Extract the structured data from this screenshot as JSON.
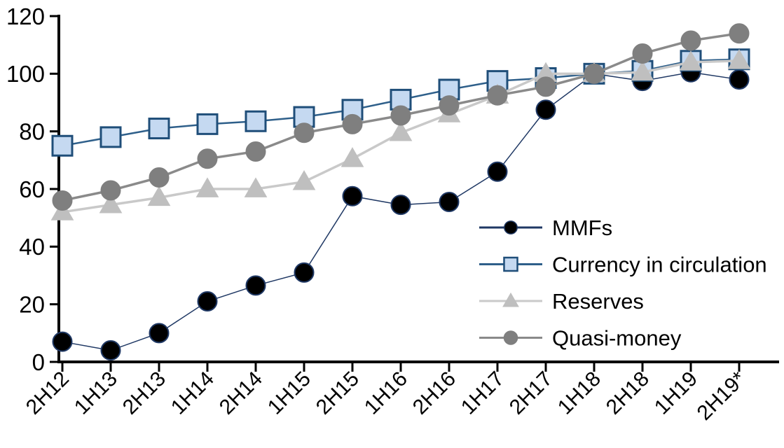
{
  "chart_data": {
    "type": "line",
    "title": "",
    "xlabel": "",
    "ylabel": "",
    "categories": [
      "2H12",
      "1H13",
      "2H13",
      "1H14",
      "2H14",
      "1H15",
      "2H15",
      "1H16",
      "2H16",
      "1H17",
      "2H17",
      "1H18",
      "2H18",
      "1H19",
      "2H19*"
    ],
    "series": [
      {
        "name": "MMFs",
        "marker": "circle",
        "fill": "#000000",
        "stroke": "#1F3864",
        "line_color": "#1F3864",
        "line_width": 1.5,
        "marker_size": 27,
        "values": [
          7,
          4,
          10,
          21,
          26.5,
          31,
          57.5,
          54.5,
          55.5,
          66,
          87.5,
          100,
          97.5,
          100.5,
          98
        ]
      },
      {
        "name": "Currency in circulation",
        "marker": "square",
        "fill": "#C5D9F1",
        "stroke": "#1F4E79",
        "line_color": "#2E5F8A",
        "line_width": 2.5,
        "marker_size": 28,
        "values": [
          75,
          78,
          81,
          82.5,
          83.5,
          85,
          87.5,
          91,
          94.5,
          97.5,
          98.5,
          100,
          101,
          104.5,
          105
        ]
      },
      {
        "name": "Reserves",
        "marker": "triangle",
        "fill": "#BFBFBF",
        "stroke": "#BFBFBF",
        "line_color": "#C9C9C9",
        "line_width": 3.5,
        "marker_size": 31,
        "values": [
          52,
          54.5,
          57,
          60,
          60,
          62.5,
          70.5,
          79.5,
          86,
          92.5,
          100,
          100,
          100.5,
          104,
          104.5
        ]
      },
      {
        "name": "Quasi-money",
        "marker": "circle",
        "fill": "#7F7F7F",
        "stroke": "#7F7F7F",
        "line_color": "#8A8A8A",
        "line_width": 3.5,
        "marker_size": 28,
        "values": [
          56,
          59.5,
          64,
          70.5,
          73,
          79.5,
          82.5,
          85.5,
          89,
          92.5,
          95.5,
          100,
          107,
          111.5,
          114
        ]
      }
    ],
    "yticks": [
      0,
      20,
      40,
      60,
      80,
      100,
      120
    ],
    "ylim": [
      0,
      120
    ],
    "grid": false,
    "legend_position": "inside-right",
    "axis_color": "#000000"
  }
}
